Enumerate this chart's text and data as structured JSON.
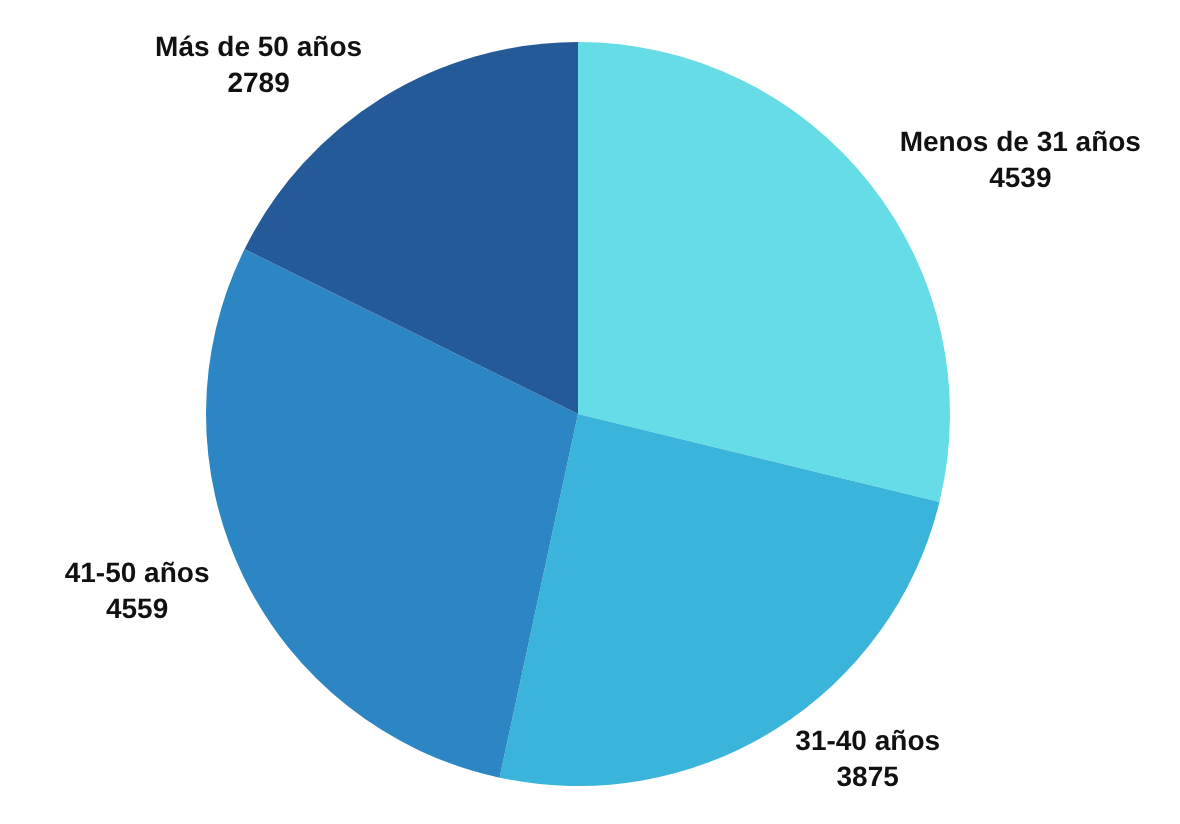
{
  "chart_data": {
    "type": "pie",
    "categories": [
      "Menos de 31 años",
      "31-40 años",
      "41-50 años",
      "Más de 50 años"
    ],
    "values": [
      4539,
      3875,
      4559,
      2789
    ],
    "colors": [
      "#66dde6",
      "#3ab4da",
      "#2c86c4",
      "#245a98"
    ],
    "data_labels": true,
    "legend": false
  }
}
